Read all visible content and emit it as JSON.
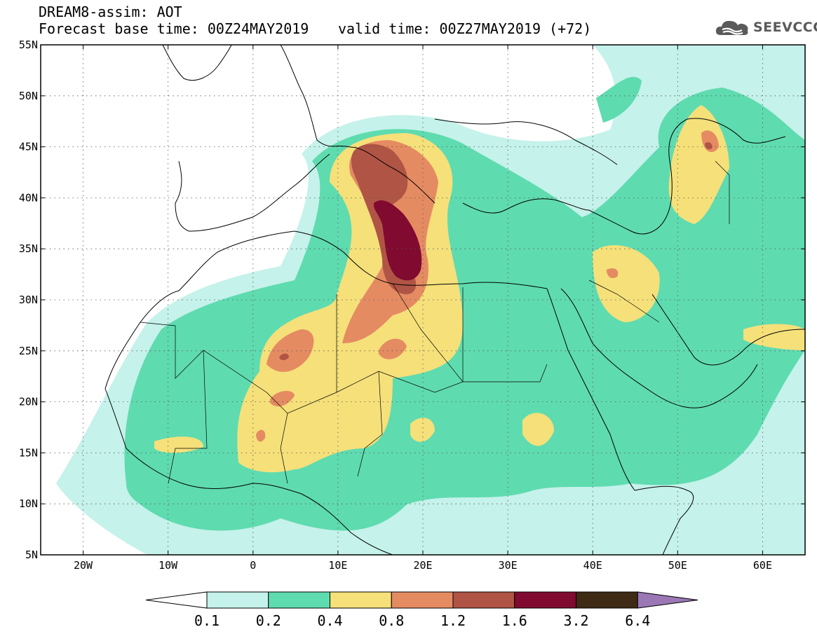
{
  "header": {
    "model_line": "DREAM8-assim: AOT",
    "base_time_line": "Forecast base time: 00Z24MAY2019",
    "valid_time_line": "valid time: 00Z27MAY2019 (+72)",
    "logo_text": "SEEVCCC"
  },
  "map": {
    "lon_range": [
      -25,
      65
    ],
    "lat_range": [
      5,
      55
    ],
    "lat_ticks": [
      {
        "value": 55,
        "label": "55N"
      },
      {
        "value": 50,
        "label": "50N"
      },
      {
        "value": 45,
        "label": "45N"
      },
      {
        "value": 40,
        "label": "40N"
      },
      {
        "value": 35,
        "label": "35N"
      },
      {
        "value": 30,
        "label": "30N"
      },
      {
        "value": 25,
        "label": "25N"
      },
      {
        "value": 20,
        "label": "20N"
      },
      {
        "value": 15,
        "label": "15N"
      },
      {
        "value": 10,
        "label": "10N"
      },
      {
        "value": 5,
        "label": "5N"
      }
    ],
    "lon_ticks": [
      {
        "value": -20,
        "label": "20W"
      },
      {
        "value": -10,
        "label": "10W"
      },
      {
        "value": 0,
        "label": "0"
      },
      {
        "value": 10,
        "label": "10E"
      },
      {
        "value": 20,
        "label": "20E"
      },
      {
        "value": 30,
        "label": "30E"
      },
      {
        "value": 40,
        "label": "40E"
      },
      {
        "value": 50,
        "label": "50E"
      },
      {
        "value": 60,
        "label": "60E"
      }
    ],
    "grid": true
  },
  "colorbar": {
    "labels": [
      "0.1",
      "0.2",
      "0.4",
      "0.8",
      "1.2",
      "1.6",
      "3.2",
      "6.4"
    ],
    "colors": [
      "#c5f2ea",
      "#5fdbb0",
      "#f5e07a",
      "#e58b62",
      "#b05545",
      "#800a30",
      "#3e2a15",
      "#9b77b5"
    ]
  }
}
